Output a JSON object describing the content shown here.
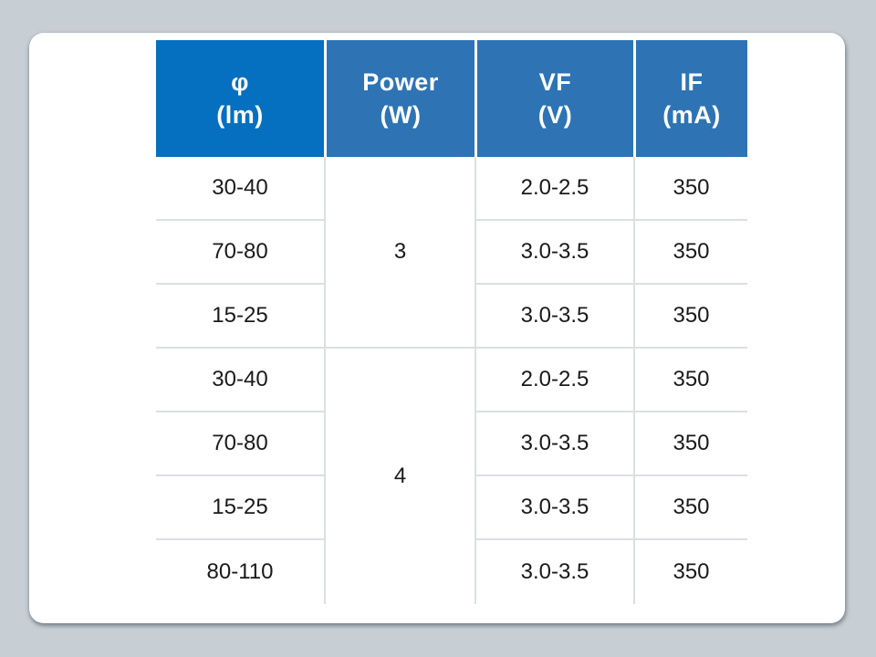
{
  "page": {
    "background_color": "#c7ced4",
    "card_background": "#ffffff",
    "divider_color": "#dcdfe1",
    "body_text_color": "#1a1a1a"
  },
  "table": {
    "header": {
      "columns": [
        {
          "key": "phi",
          "line1": "φ",
          "line2": "(lm)",
          "background": "#0570c0",
          "text_color": "#ffffff"
        },
        {
          "key": "power",
          "line1": "Power",
          "line2": "(W)",
          "background": "#2e74b5",
          "text_color": "#ffffff"
        },
        {
          "key": "vf",
          "line1": "VF",
          "line2": "(V)",
          "background": "#2e74b5",
          "text_color": "#ffffff"
        },
        {
          "key": "if",
          "line1": "IF",
          "line2": "(mA)",
          "background": "#2e74b5",
          "text_color": "#ffffff"
        }
      ]
    },
    "groups": [
      {
        "power": "3",
        "rows": [
          {
            "phi": "30-40",
            "vf": "2.0-2.5",
            "if": "350"
          },
          {
            "phi": "70-80",
            "vf": "3.0-3.5",
            "if": "350"
          },
          {
            "phi": "15-25",
            "vf": "3.0-3.5",
            "if": "350"
          }
        ]
      },
      {
        "power": "4",
        "rows": [
          {
            "phi": "30-40",
            "vf": "2.0-2.5",
            "if": "350"
          },
          {
            "phi": "70-80",
            "vf": "3.0-3.5",
            "if": "350"
          },
          {
            "phi": "15-25",
            "vf": "3.0-3.5",
            "if": "350"
          },
          {
            "phi": "80-110",
            "vf": "3.0-3.5",
            "if": "350"
          }
        ]
      }
    ]
  },
  "chart_data": {
    "type": "table",
    "title": "",
    "columns": [
      "φ (lm)",
      "Power (W)",
      "VF (V)",
      "IF (mA)"
    ],
    "rows": [
      [
        "30-40",
        "3",
        "2.0-2.5",
        "350"
      ],
      [
        "70-80",
        "3",
        "3.0-3.5",
        "350"
      ],
      [
        "15-25",
        "3",
        "3.0-3.5",
        "350"
      ],
      [
        "30-40",
        "4",
        "2.0-2.5",
        "350"
      ],
      [
        "70-80",
        "4",
        "3.0-3.5",
        "350"
      ],
      [
        "15-25",
        "4",
        "3.0-3.5",
        "350"
      ],
      [
        "80-110",
        "4",
        "3.0-3.5",
        "350"
      ]
    ],
    "merged_cells": [
      {
        "column": "Power (W)",
        "value": "3",
        "rows_spanned": [
          1,
          3
        ]
      },
      {
        "column": "Power (W)",
        "value": "4",
        "rows_spanned": [
          4,
          7
        ]
      }
    ],
    "layout_hints": {
      "header_background_col1": "#0570c0",
      "header_background_others": "#2e74b5",
      "header_text_color": "#ffffff",
      "gridlines": "light-gray internal only, no outer border"
    }
  }
}
